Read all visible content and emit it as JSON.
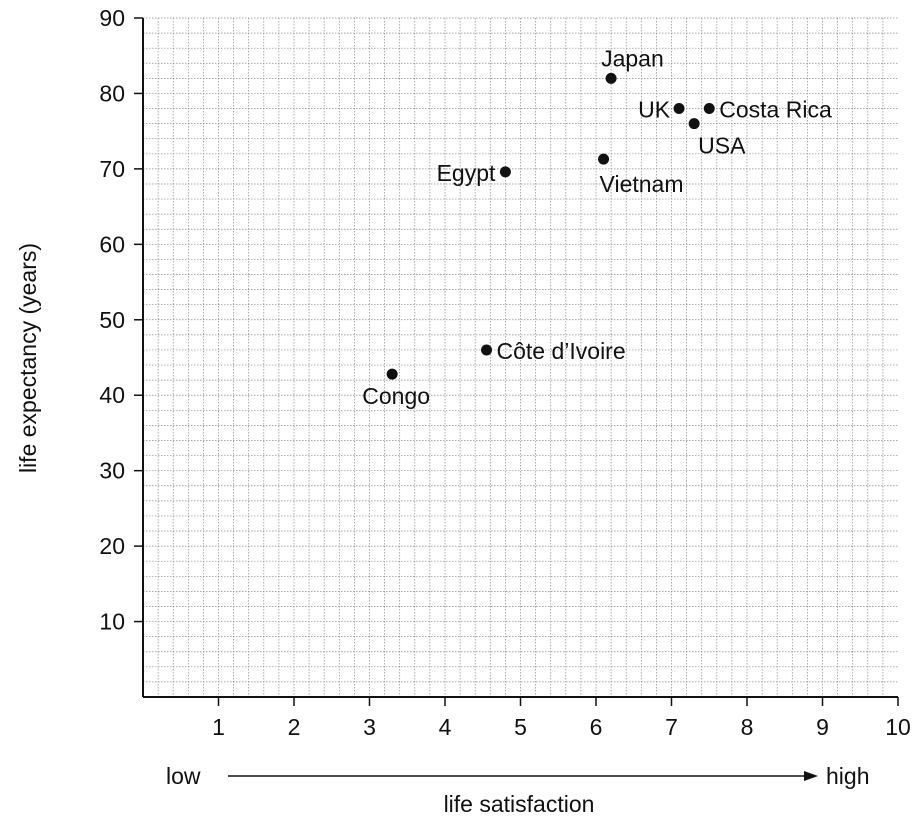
{
  "chart_data": {
    "type": "scatter",
    "title": "",
    "xlabel": "life satisfaction",
    "ylabel": "life expectancy (years)",
    "xlim": [
      0,
      10
    ],
    "ylim": [
      0,
      90
    ],
    "x_ticks": [
      1,
      2,
      3,
      4,
      5,
      6,
      7,
      8,
      9,
      10
    ],
    "y_ticks": [
      10,
      20,
      30,
      40,
      50,
      60,
      70,
      80,
      90
    ],
    "x_low_label": "low",
    "x_high_label": "high",
    "grid": true,
    "points": [
      {
        "label": "Japan",
        "x": 6.2,
        "y": 82
      },
      {
        "label": "UK",
        "x": 7.1,
        "y": 78
      },
      {
        "label": "Costa Rica",
        "x": 7.5,
        "y": 78
      },
      {
        "label": "USA",
        "x": 7.3,
        "y": 76
      },
      {
        "label": "Egypt",
        "x": 4.8,
        "y": 69.6
      },
      {
        "label": "Vietnam",
        "x": 6.1,
        "y": 71.3
      },
      {
        "label": "Côte d’Ivoire",
        "x": 4.55,
        "y": 46
      },
      {
        "label": "Congo",
        "x": 3.3,
        "y": 42.8
      }
    ]
  }
}
